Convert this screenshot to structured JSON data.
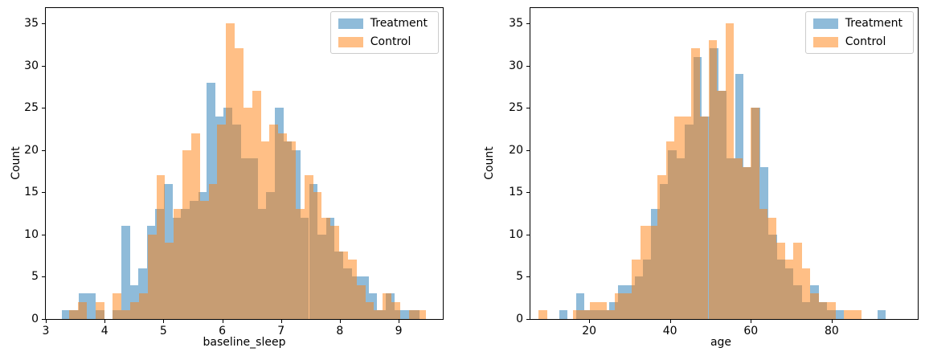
{
  "figure": {
    "background": "#ffffff"
  },
  "colors": {
    "treatment_fill": "rgba(31,119,180,0.5)",
    "control_fill": "rgba(255,127,14,0.5)",
    "treatment_solid": "#1f77b4",
    "control_solid": "#ff7f0e",
    "overlap_seen": "#c89f74",
    "spine": "#000000",
    "legend_border": "#cccccc",
    "text": "#000000"
  },
  "legend": {
    "position": "upper right",
    "entries": [
      {
        "label": "Treatment"
      },
      {
        "label": "Control"
      }
    ]
  },
  "chart_data": [
    {
      "type": "bar",
      "subtype": "overlaid-histogram",
      "title": "",
      "xlabel": "baseline_sleep",
      "ylabel": "Count",
      "xlim": [
        3.0,
        9.75
      ],
      "ylim": [
        0,
        36.8
      ],
      "xticks": [
        3,
        4,
        5,
        6,
        7,
        8,
        9
      ],
      "yticks": [
        0,
        5,
        10,
        15,
        20,
        25,
        30,
        35
      ],
      "grid": false,
      "legend_position": "upper right",
      "series": [
        {
          "name": "Treatment",
          "color": "rgba(31,119,180,0.5)",
          "bin_start": 3.27,
          "bin_width": 0.145,
          "counts": [
            1,
            1,
            3,
            3,
            1,
            0,
            1,
            11,
            4,
            6,
            11,
            13,
            16,
            12,
            13,
            14,
            15,
            28,
            24,
            25,
            23,
            19,
            19,
            13,
            15,
            25,
            21,
            20,
            12,
            16,
            10,
            12,
            8,
            6,
            5,
            5,
            3,
            1,
            3,
            1,
            1,
            1
          ]
        },
        {
          "name": "Control",
          "color": "rgba(255,127,14,0.5)",
          "bin_start": 3.4,
          "bin_width": 0.148,
          "counts": [
            1,
            2,
            0,
            2,
            0,
            3,
            1,
            2,
            3,
            10,
            17,
            9,
            13,
            20,
            22,
            14,
            16,
            23,
            35,
            32,
            25,
            27,
            21,
            23,
            22,
            21,
            13,
            17,
            15,
            12,
            11,
            8,
            7,
            4,
            2,
            1,
            3,
            2,
            0,
            1,
            1
          ]
        }
      ]
    },
    {
      "type": "bar",
      "subtype": "overlaid-histogram",
      "title": "",
      "xlabel": "age",
      "ylabel": "Count",
      "xlim": [
        5.45,
        101.3
      ],
      "ylim": [
        0,
        36.8
      ],
      "xticks": [
        20,
        40,
        60,
        80
      ],
      "yticks": [
        0,
        5,
        10,
        15,
        20,
        25,
        30,
        35
      ],
      "grid": false,
      "legend_position": "upper right",
      "series": [
        {
          "name": "Treatment",
          "color": "rgba(31,119,180,0.5)",
          "bin_start": 12.6,
          "bin_width": 2.07,
          "counts": [
            1,
            0,
            3,
            1,
            1,
            1,
            2,
            4,
            4,
            5,
            7,
            13,
            16,
            20,
            19,
            23,
            31,
            24,
            32,
            27,
            19,
            29,
            18,
            25,
            18,
            10,
            7,
            6,
            4,
            2,
            4,
            2,
            1,
            1,
            0,
            0,
            0,
            0,
            1,
            0
          ]
        },
        {
          "name": "Control",
          "color": "rgba(255,127,14,0.5)",
          "bin_start": 7.5,
          "bin_width": 2.1,
          "counts": [
            1,
            0,
            0,
            0,
            1,
            1,
            2,
            2,
            1,
            3,
            3,
            7,
            11,
            11,
            17,
            21,
            24,
            24,
            32,
            24,
            33,
            27,
            35,
            19,
            18,
            25,
            13,
            12,
            9,
            7,
            9,
            6,
            3,
            2,
            2,
            0,
            1,
            1,
            0,
            0
          ]
        }
      ]
    }
  ]
}
